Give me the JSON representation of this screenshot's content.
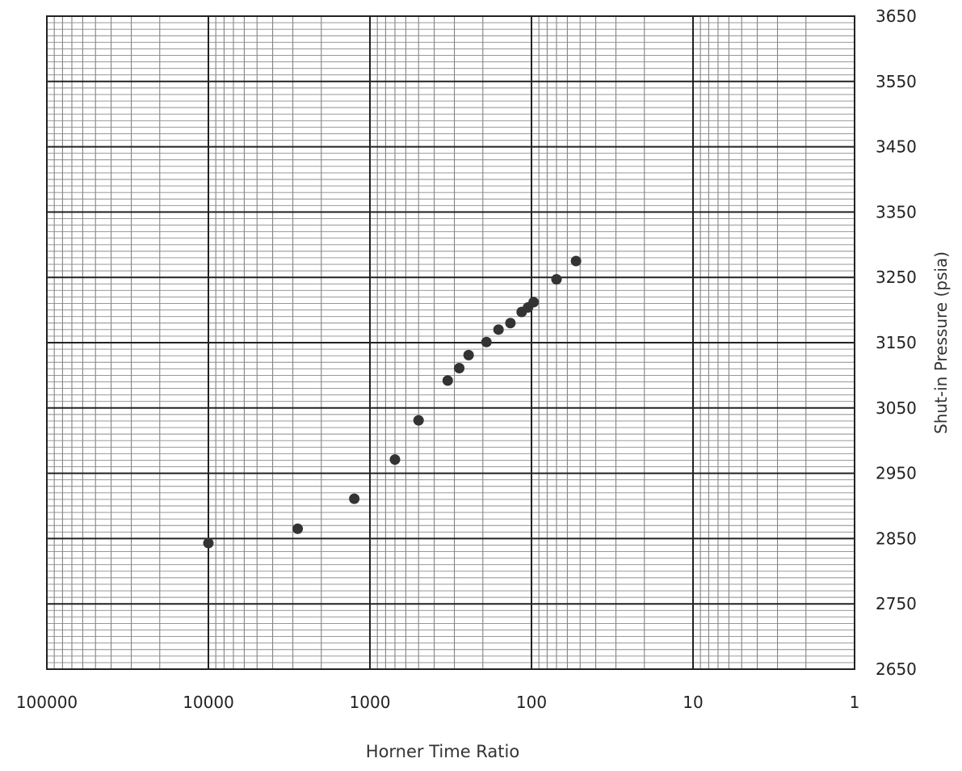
{
  "chart_data": {
    "type": "scatter",
    "title": "",
    "xlabel": "Horner Time Ratio",
    "ylabel": "Shut-in Pressure (psia)",
    "x_scale": "log",
    "x_reversed": true,
    "xlim": [
      100000,
      1
    ],
    "ylim": [
      2650,
      3650
    ],
    "x_tick_labels": [
      "100000",
      "10000",
      "1000",
      "100",
      "10",
      "1"
    ],
    "x_tick_values": [
      100000,
      10000,
      1000,
      100,
      10,
      1
    ],
    "y_tick_labels": [
      "3650",
      "3550",
      "3450",
      "3350",
      "3250",
      "3150",
      "3050",
      "2950",
      "2850",
      "2750",
      "2650"
    ],
    "y_tick_values": [
      3650,
      3550,
      3450,
      3350,
      3250,
      3150,
      3050,
      2950,
      2850,
      2750,
      2650
    ],
    "y_axis_position": "right",
    "grid": true,
    "legend": "none",
    "marker_color": "#333333",
    "series": [
      {
        "points": [
          {
            "x": 10000,
            "y": 2843
          },
          {
            "x": 2800,
            "y": 2865
          },
          {
            "x": 1250,
            "y": 2911
          },
          {
            "x": 700,
            "y": 2971
          },
          {
            "x": 500,
            "y": 3031
          },
          {
            "x": 330,
            "y": 3092
          },
          {
            "x": 280,
            "y": 3111
          },
          {
            "x": 245,
            "y": 3131
          },
          {
            "x": 190,
            "y": 3151
          },
          {
            "x": 160,
            "y": 3170
          },
          {
            "x": 135,
            "y": 3180
          },
          {
            "x": 115,
            "y": 3197
          },
          {
            "x": 105,
            "y": 3204
          },
          {
            "x": 97,
            "y": 3212
          },
          {
            "x": 70,
            "y": 3247
          },
          {
            "x": 53,
            "y": 3275
          }
        ]
      }
    ]
  }
}
